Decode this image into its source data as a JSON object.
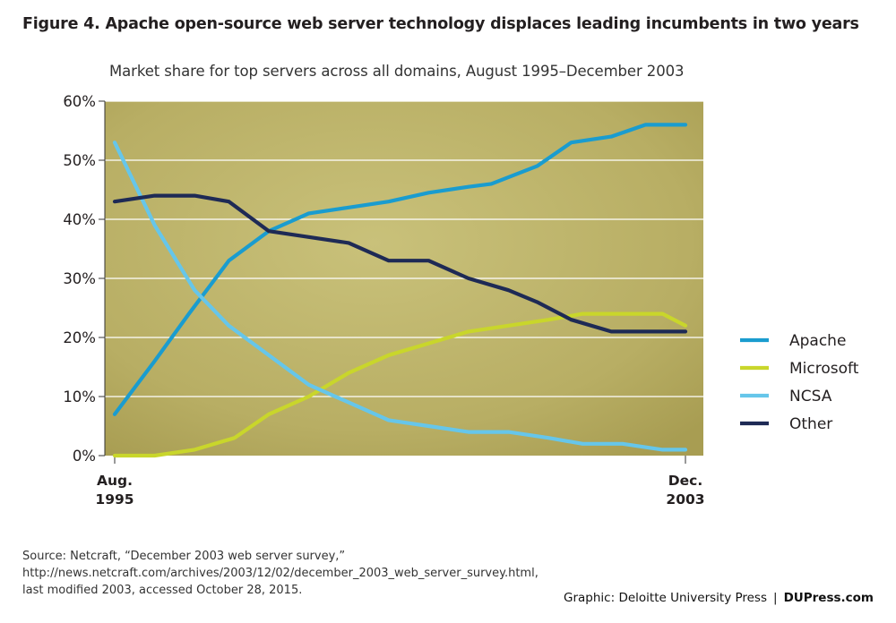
{
  "figure": {
    "title": "Figure 4. Apache open-source web server technology displaces leading incumbents in two years",
    "source_line1": "Source: Netcraft, “December 2003 web server survey,” http://news.netcraft.com/archives/2003/12/02/december_2003_web_server_survey.html,",
    "source_line2": "last modified 2003, accessed October 28, 2015.",
    "credit_left": "Graphic: Deloitte University Press",
    "credit_sep": "|",
    "credit_right": "DUPress.com"
  },
  "chart_data": {
    "type": "line",
    "title": "Market share for top servers across all domains, August 1995–December 2003",
    "ylim": [
      0,
      60
    ],
    "yticks": [
      "0%",
      "10%",
      "20%",
      "30%",
      "40%",
      "50%",
      "60%"
    ],
    "x_start_label": [
      "Aug.",
      "1995"
    ],
    "x_end_label": [
      "Dec.",
      "2003"
    ],
    "legend_position": "right",
    "background_color": "#bdb36a",
    "series": [
      {
        "name": "Apache",
        "color": "#1a9ccf",
        "x": [
          0,
          0.07,
          0.13,
          0.2,
          0.27,
          0.34,
          0.41,
          0.48,
          0.55,
          0.62,
          0.66,
          0.74,
          0.8,
          0.87,
          0.93,
          1.0
        ],
        "values": [
          7,
          16,
          24,
          33,
          38,
          41,
          42,
          43,
          44.5,
          45.5,
          46,
          49,
          53,
          54,
          56,
          56
        ]
      },
      {
        "name": "Microsoft",
        "color": "#c9d62b",
        "x": [
          0,
          0.07,
          0.14,
          0.21,
          0.27,
          0.34,
          0.41,
          0.48,
          0.55,
          0.62,
          0.69,
          0.76,
          0.82,
          0.9,
          0.96,
          1.0
        ],
        "values": [
          0,
          0,
          1,
          3,
          7,
          10,
          14,
          17,
          19,
          21,
          22,
          23,
          24,
          24,
          24,
          22
        ]
      },
      {
        "name": "NCSA",
        "color": "#66c6ea",
        "x": [
          0,
          0.07,
          0.14,
          0.2,
          0.27,
          0.34,
          0.41,
          0.48,
          0.55,
          0.62,
          0.69,
          0.76,
          0.82,
          0.89,
          0.96,
          1.0
        ],
        "values": [
          53,
          39,
          28,
          22,
          17,
          12,
          9,
          6,
          5,
          4,
          4,
          3,
          2,
          2,
          1,
          1
        ]
      },
      {
        "name": "Other",
        "color": "#1e2a55",
        "x": [
          0,
          0.07,
          0.14,
          0.2,
          0.27,
          0.34,
          0.41,
          0.48,
          0.55,
          0.62,
          0.69,
          0.74,
          0.8,
          0.87,
          0.93,
          1.0
        ],
        "values": [
          43,
          44,
          44,
          43,
          38,
          37,
          36,
          33,
          33,
          30,
          28,
          26,
          23,
          21,
          21,
          21
        ]
      }
    ]
  }
}
